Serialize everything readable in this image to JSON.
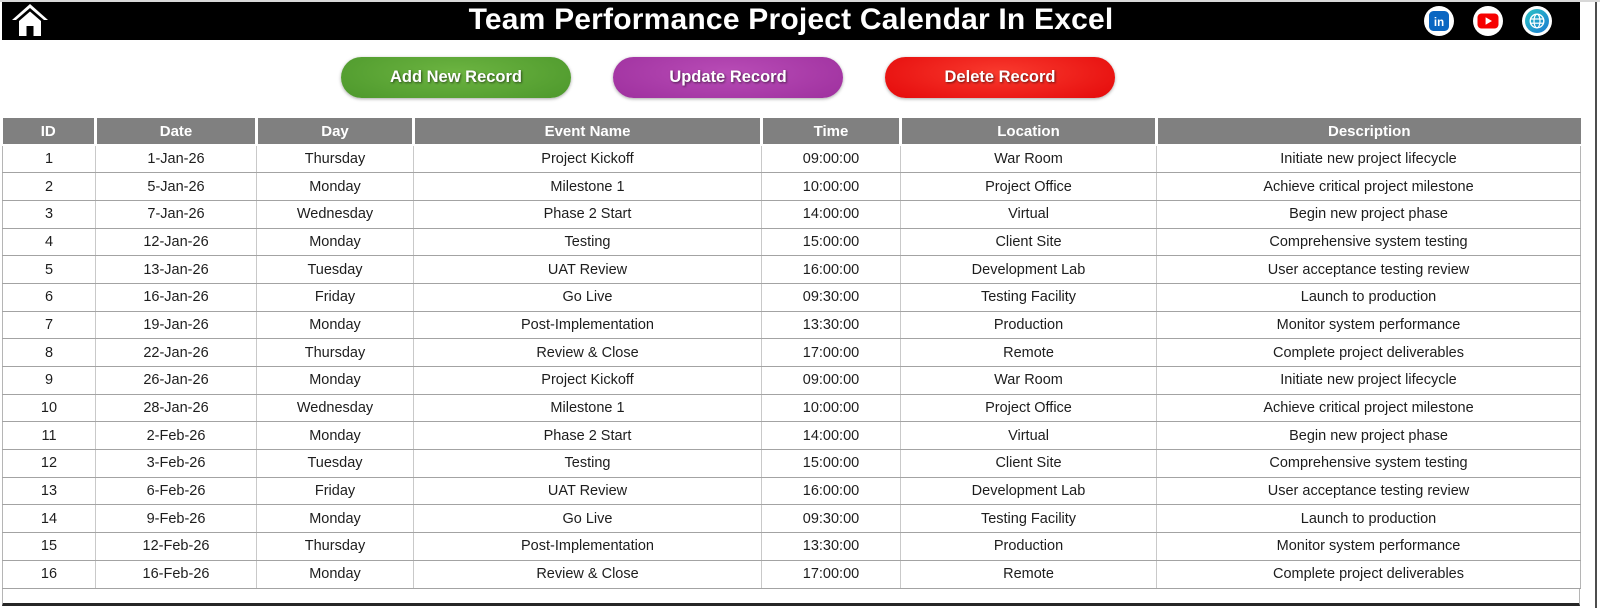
{
  "header": {
    "title": "Team Performance Project Calendar In Excel",
    "home_icon": "home",
    "social_icons": [
      "linkedin",
      "youtube",
      "website-globe"
    ]
  },
  "toolbar": {
    "buttons": [
      {
        "label": "Add New Record",
        "color": "#4f9a2d"
      },
      {
        "label": "Update Record",
        "color": "#a032a0"
      },
      {
        "label": "Delete Record",
        "color": "#e60d0d"
      }
    ]
  },
  "colors": {
    "top_bar_bg": "#000000",
    "table_header_bg": "#808080",
    "linkedin_blue": "#0a66c2",
    "youtube_red": "#ff0000",
    "globe_teal": "#2bbcc4",
    "globe_blue": "#1b7ad2"
  },
  "table": {
    "columns": [
      "ID",
      "Date",
      "Day",
      "Event Name",
      "Time",
      "Location",
      "Description"
    ],
    "rows": [
      [
        "1",
        "1-Jan-26",
        "Thursday",
        "Project Kickoff",
        "09:00:00",
        "War Room",
        "Initiate new project lifecycle"
      ],
      [
        "2",
        "5-Jan-26",
        "Monday",
        "Milestone 1",
        "10:00:00",
        "Project Office",
        "Achieve critical project milestone"
      ],
      [
        "3",
        "7-Jan-26",
        "Wednesday",
        "Phase 2 Start",
        "14:00:00",
        "Virtual",
        "Begin new project phase"
      ],
      [
        "4",
        "12-Jan-26",
        "Monday",
        "Testing",
        "15:00:00",
        "Client Site",
        "Comprehensive system testing"
      ],
      [
        "5",
        "13-Jan-26",
        "Tuesday",
        "UAT Review",
        "16:00:00",
        "Development Lab",
        "User acceptance testing review"
      ],
      [
        "6",
        "16-Jan-26",
        "Friday",
        "Go Live",
        "09:30:00",
        "Testing Facility",
        "Launch to production"
      ],
      [
        "7",
        "19-Jan-26",
        "Monday",
        "Post-Implementation",
        "13:30:00",
        "Production",
        "Monitor system performance"
      ],
      [
        "8",
        "22-Jan-26",
        "Thursday",
        "Review & Close",
        "17:00:00",
        "Remote",
        "Complete project deliverables"
      ],
      [
        "9",
        "26-Jan-26",
        "Monday",
        "Project Kickoff",
        "09:00:00",
        "War Room",
        "Initiate new project lifecycle"
      ],
      [
        "10",
        "28-Jan-26",
        "Wednesday",
        "Milestone 1",
        "10:00:00",
        "Project Office",
        "Achieve critical project milestone"
      ],
      [
        "11",
        "2-Feb-26",
        "Monday",
        "Phase 2 Start",
        "14:00:00",
        "Virtual",
        "Begin new project phase"
      ],
      [
        "12",
        "3-Feb-26",
        "Tuesday",
        "Testing",
        "15:00:00",
        "Client Site",
        "Comprehensive system testing"
      ],
      [
        "13",
        "6-Feb-26",
        "Friday",
        "UAT Review",
        "16:00:00",
        "Development Lab",
        "User acceptance testing review"
      ],
      [
        "14",
        "9-Feb-26",
        "Monday",
        "Go Live",
        "09:30:00",
        "Testing Facility",
        "Launch to production"
      ],
      [
        "15",
        "12-Feb-26",
        "Thursday",
        "Post-Implementation",
        "13:30:00",
        "Production",
        "Monitor system performance"
      ],
      [
        "16",
        "16-Feb-26",
        "Monday",
        "Review & Close",
        "17:00:00",
        "Remote",
        "Complete project deliverables"
      ]
    ]
  }
}
